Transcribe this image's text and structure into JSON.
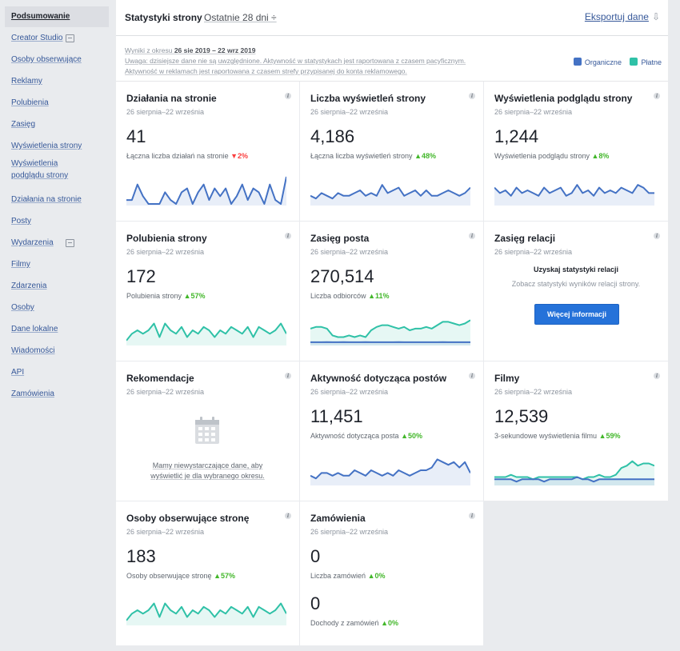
{
  "sidebar": {
    "items": [
      {
        "label": "Podsumowanie"
      },
      {
        "label": "Creator Studio"
      },
      {
        "label": "Osoby obserwujące"
      },
      {
        "label": "Reklamy"
      },
      {
        "label": "Polubienia"
      },
      {
        "label": "Zasięg"
      },
      {
        "label": "Wyświetlenia strony"
      },
      {
        "label": "Wyświetlenia podglądu strony"
      },
      {
        "label": "Działania na stronie"
      },
      {
        "label": "Posty"
      },
      {
        "label": "Wydarzenia"
      },
      {
        "label": "Filmy"
      },
      {
        "label": "Zdarzenia"
      },
      {
        "label": "Osoby"
      },
      {
        "label": "Dane lokalne"
      },
      {
        "label": "Wiadomości"
      },
      {
        "label": "API"
      },
      {
        "label": "Zamówienia"
      }
    ]
  },
  "header": {
    "title": "Statystyki strony",
    "range": "Ostatnie 28 dni ÷",
    "export": "Eksportuj dane"
  },
  "notice": {
    "line1_prefix": "Wyniki z okresu",
    "line1_range": "26 sie 2019 – 22 wrz 2019",
    "line2": "Uwaga: dzisiejsze dane nie są uwzględnione. Aktywność w statystykach jest raportowana z czasem pacyficznym.",
    "line3": "Aktywność w reklamach jest raportowana z czasem strefy przypisanej do konta reklamowego."
  },
  "legend": {
    "organic": "Organiczne",
    "paid": "Płatne",
    "organic_color": "#4472c4",
    "paid_color": "#2fc1a7"
  },
  "cards": {
    "actions": {
      "title": "Działania na stronie",
      "date": "26 sierpnia–22 września",
      "value": "41",
      "sub": "Łączna liczba działań na stronie",
      "change": "▼2%"
    },
    "views": {
      "title": "Liczba wyświetleń strony",
      "date": "26 sierpnia–22 września",
      "value": "4,186",
      "sub": "Łączna liczba wyświetleń strony",
      "change": "▲48%"
    },
    "preview": {
      "title": "Wyświetlenia podglądu strony",
      "date": "26 sierpnia–22 września",
      "value": "1,244",
      "sub": "Wyświetlenia podglądu strony",
      "change": "▲8%"
    },
    "likes": {
      "title": "Polubienia strony",
      "date": "26 sierpnia–22 września",
      "value": "172",
      "sub": "Polubienia strony",
      "change": "▲57%"
    },
    "reach": {
      "title": "Zasięg posta",
      "date": "26 sierpnia–22 września",
      "value": "270,514",
      "sub": "Liczba odbiorców",
      "change": "▲11%"
    },
    "stories": {
      "title": "Zasięg relacji",
      "date": "26 sierpnia–22 września",
      "heading": "Uzyskaj statystyki relacji",
      "body": "Zobacz statystyki wyników relacji strony.",
      "button": "Więcej informacji"
    },
    "recs": {
      "title": "Rekomendacje",
      "date": "26 sierpnia–22 września",
      "nodata1": "Mamy niewystarczające dane, aby",
      "nodata2": "wyświetlić je dla wybranego okresu."
    },
    "engagement": {
      "title": "Aktywność dotycząca postów",
      "date": "26 sierpnia–22 września",
      "value": "11,451",
      "sub": "Aktywność dotycząca posta",
      "change": "▲50%"
    },
    "videos": {
      "title": "Filmy",
      "date": "26 sierpnia–22 września",
      "value": "12,539",
      "sub": "3-sekundowe wyświetlenia filmu",
      "change": "▲59%"
    },
    "followers": {
      "title": "Osoby obserwujące stronę",
      "date": "26 sierpnia–22 września",
      "value": "183",
      "sub": "Osoby obserwujące stronę",
      "change": "▲57%"
    },
    "orders": {
      "title": "Zamówienia",
      "date": "26 sierpnia–22 września",
      "value1": "0",
      "sub1": "Liczba zamówień",
      "change1": "▲0%",
      "value2": "0",
      "sub2": "Dochody z zamówień",
      "change2": "▲0%"
    }
  },
  "sparklines": {
    "actions": {
      "organic": [
        1,
        1,
        5,
        2,
        0,
        0,
        0,
        3,
        1,
        0,
        3,
        4,
        0,
        3,
        5,
        1,
        4,
        2,
        4,
        0,
        2,
        5,
        1,
        4,
        3,
        0,
        5,
        1,
        0,
        7
      ],
      "max": 7
    },
    "views": {
      "organic": [
        3,
        2,
        4,
        3,
        2,
        4,
        3,
        3,
        4,
        5,
        3,
        4,
        3,
        7,
        4,
        5,
        6,
        3,
        4,
        5,
        3,
        5,
        3,
        3,
        4,
        5,
        4,
        3,
        4,
        6
      ],
      "max": 10
    },
    "preview": {
      "organic": [
        6,
        4,
        5,
        3,
        6,
        4,
        5,
        4,
        3,
        6,
        4,
        5,
        6,
        3,
        4,
        7,
        4,
        5,
        3,
        6,
        4,
        5,
        4,
        6,
        5,
        4,
        7,
        6,
        4,
        4
      ],
      "max": 10
    },
    "likes": {
      "organic": [
        1,
        3,
        4,
        3,
        4,
        6,
        2,
        6,
        4,
        3,
        5,
        2,
        4,
        3,
        5,
        4,
        2,
        4,
        3,
        5,
        4,
        3,
        5,
        2,
        5,
        4,
        3,
        4,
        6,
        3
      ],
      "max": 8
    },
    "reach": {
      "organic": [
        1,
        1,
        1,
        1.1,
        1,
        1,
        1.1,
        1,
        1,
        1,
        1.1,
        1,
        1,
        1,
        1,
        1,
        1.1,
        1,
        1,
        1,
        1,
        1,
        1,
        1,
        1.1,
        1,
        1,
        1,
        1,
        1
      ],
      "paid": [
        9,
        10,
        10,
        9,
        5,
        4,
        4,
        5,
        4,
        5,
        4,
        8,
        10,
        11,
        11,
        10,
        9,
        10,
        8,
        9,
        9,
        10,
        9,
        11,
        13,
        13,
        12,
        11,
        12,
        14
      ],
      "max": 16
    },
    "engagement": {
      "organic": [
        3,
        2,
        4,
        4,
        3,
        4,
        3,
        3,
        5,
        4,
        3,
        5,
        4,
        3,
        4,
        3,
        5,
        4,
        3,
        4,
        5,
        5,
        6,
        9,
        8,
        7,
        8,
        6,
        8,
        4
      ],
      "max": 10
    },
    "videos": {
      "organic": [
        2,
        2,
        2,
        2,
        1,
        2,
        2,
        2,
        2,
        1,
        2,
        2,
        2,
        2,
        2,
        3,
        2,
        2,
        1,
        2,
        2,
        2,
        2,
        2,
        2,
        2,
        2,
        2,
        2,
        2
      ],
      "paid": [
        3,
        3,
        3,
        4,
        3,
        3,
        3,
        2,
        3,
        3,
        3,
        3,
        3,
        3,
        3,
        3,
        2,
        3,
        3,
        4,
        3,
        3,
        4,
        7,
        8,
        10,
        8,
        9,
        9,
        8
      ],
      "max": 12
    },
    "followers": {
      "organic": [
        1,
        3,
        4,
        3,
        4,
        6,
        2,
        6,
        4,
        3,
        5,
        2,
        4,
        3,
        5,
        4,
        2,
        4,
        3,
        5,
        4,
        3,
        5,
        2,
        5,
        4,
        3,
        4,
        6,
        3
      ],
      "max": 8
    }
  }
}
